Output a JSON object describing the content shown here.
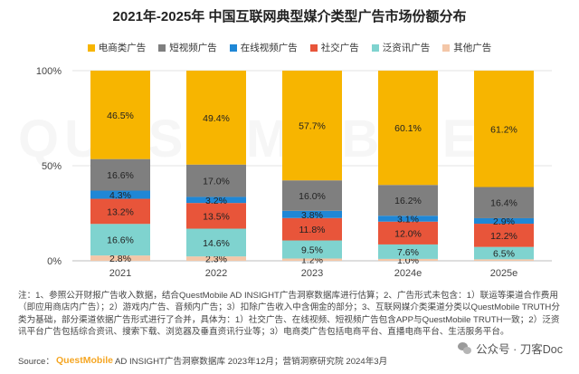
{
  "title": "2021年-2025年 中国互联网典型媒介类型广告市场份额分布",
  "watermark_logo_text": "QUEST MOBILE",
  "chart_data": {
    "type": "bar",
    "stacked": true,
    "categories": [
      "2021",
      "2022",
      "2023",
      "2024e",
      "2025e"
    ],
    "ylim": [
      0,
      100
    ],
    "y_ticks": [
      "0%",
      "50%",
      "100%"
    ],
    "series": [
      {
        "name": "其他广告",
        "color": "#f4c7a8",
        "values": [
          2.8,
          2.3,
          1.2,
          1.0,
          0.8
        ],
        "labels": [
          "2.8%",
          "2.3%",
          "1.2%",
          "1.0%",
          ""
        ]
      },
      {
        "name": "泛资讯广告",
        "color": "#7fd3cf",
        "values": [
          16.6,
          14.6,
          9.5,
          7.6,
          6.5
        ],
        "labels": [
          "16.6%",
          "14.6%",
          "9.5%",
          "7.6%",
          "6.5%"
        ]
      },
      {
        "name": "社交广告",
        "color": "#e8553a",
        "values": [
          13.2,
          13.5,
          11.8,
          12.0,
          12.2
        ],
        "labels": [
          "13.2%",
          "13.5%",
          "11.8%",
          "12.0%",
          "12.2%"
        ]
      },
      {
        "name": "在线视频广告",
        "color": "#1f87d6",
        "values": [
          4.3,
          3.2,
          3.8,
          3.1,
          2.9
        ],
        "labels": [
          "4.3%",
          "3.2%",
          "3.8%",
          "3.1%",
          "2.9%"
        ]
      },
      {
        "name": "短视频广告",
        "color": "#7f7f7f",
        "values": [
          16.6,
          17.0,
          16.0,
          16.2,
          16.4
        ],
        "labels": [
          "16.6%",
          "17.0%",
          "16.0%",
          "16.2%",
          "16.4%"
        ]
      },
      {
        "name": "电商类广告",
        "color": "#f7b500",
        "values": [
          46.5,
          49.4,
          57.7,
          60.1,
          61.2
        ],
        "labels": [
          "46.5%",
          "49.4%",
          "57.7%",
          "60.1%",
          "61.2%"
        ]
      }
    ],
    "legend_order": [
      "电商类广告",
      "短视频广告",
      "在线视频广告",
      "社交广告",
      "泛资讯广告",
      "其他广告"
    ],
    "legend_position": "top"
  },
  "notes": "注：1、参照公开财报广告收入数据，结合QuestMobile AD INSIGHT广告洞察数据库进行估算；2、广告形式未包含：1）联运等渠道合作费用（即应用商店内广告）；2）游戏内广告、音频内广告；3）扣除广告收入中含佣金的部分；3、互联网媒介类渠道分类以QuestMobile TRUTH分类为基础，部分渠道依据广告形式进行了合并，具体为：1）社交广告、在线视频、短视频广告包含APP与QuestMobile TRUTH一致；2）泛资讯平台广告包括综合资讯、搜索下载、浏览器及垂直资讯行业等；3）电商类广告包括电商平台、直播电商平台、生活服务平台。",
  "source": {
    "prefix": "Source：",
    "logo": "QuestMobile",
    "text": " AD INSIGHT广告洞察数据库 2023年12月；营销洞察研究院 2024年3月"
  },
  "wechat_watermark": "公众号 · 刀客Doc"
}
